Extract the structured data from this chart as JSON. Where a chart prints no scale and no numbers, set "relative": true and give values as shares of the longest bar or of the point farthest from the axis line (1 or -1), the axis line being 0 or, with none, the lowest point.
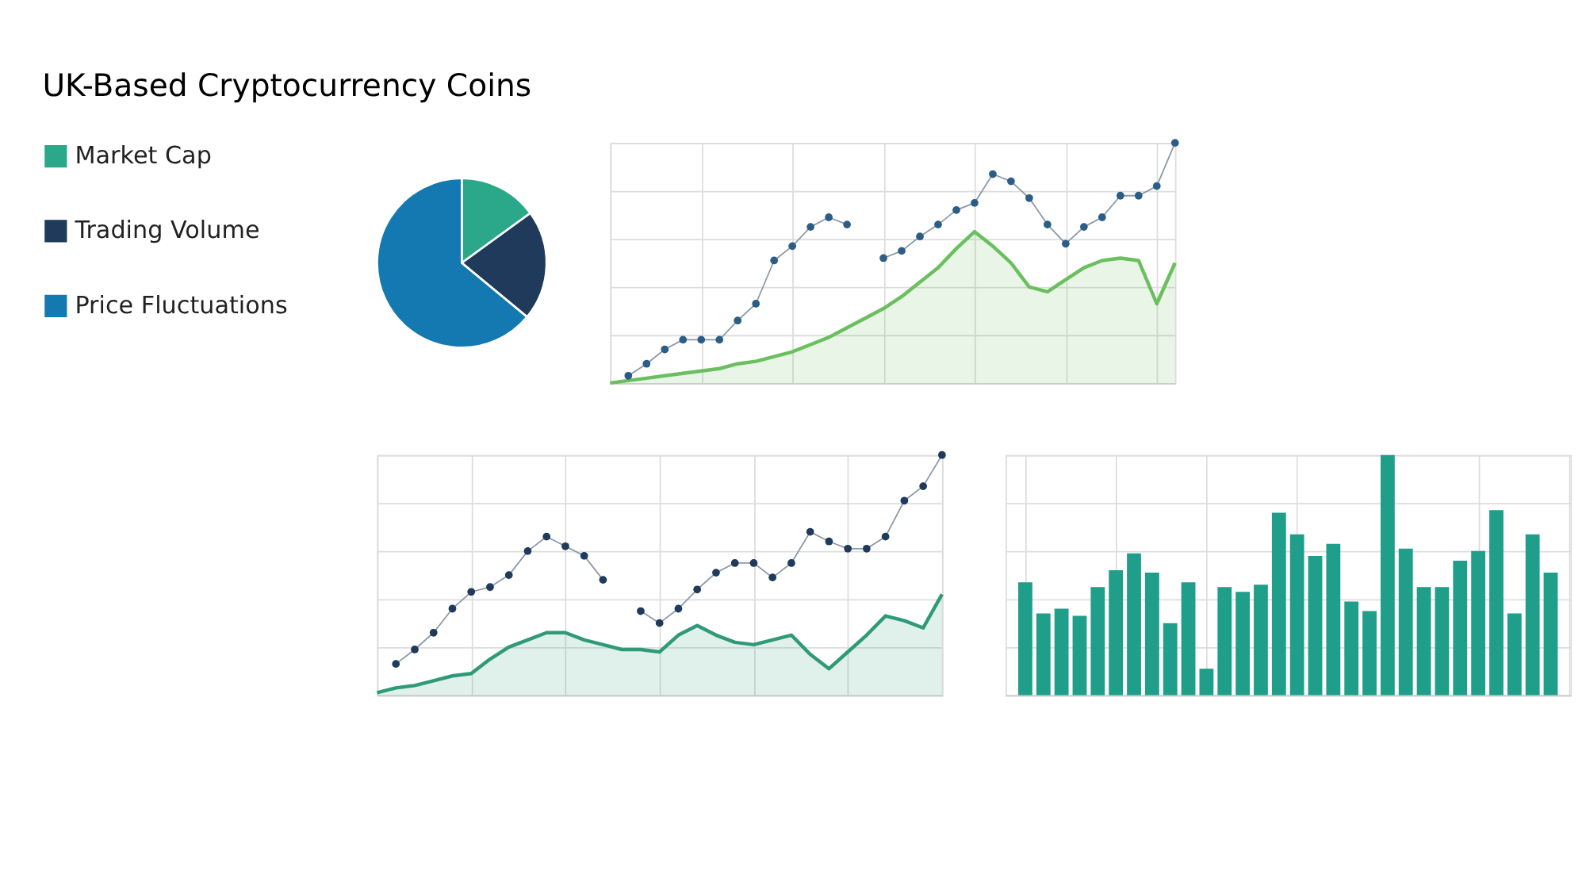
{
  "chart_data": [
    {
      "type": "pie",
      "title": "UK-Based Cryptocurrency Coins",
      "categories": [
        "Market Cap",
        "Trading Volume",
        "Price Fluctuations"
      ],
      "values": [
        15,
        21,
        64
      ],
      "colors": [
        "#2aa889",
        "#1f3a5a",
        "#1479b0"
      ],
      "legend": "left"
    },
    {
      "type": "line",
      "relative": true,
      "grid": true,
      "categories": [
        null,
        null,
        null,
        null,
        null,
        null,
        null,
        null,
        null,
        null,
        null,
        null,
        null,
        null,
        null,
        null,
        null,
        null,
        null,
        null,
        null,
        null,
        null,
        null,
        null,
        null,
        null,
        null,
        null,
        null,
        null,
        null
      ],
      "series": [
        {
          "type": "area",
          "color": "#6abf5e",
          "values": [
            0,
            0.01,
            0.02,
            0.03,
            0.04,
            0.05,
            0.06,
            0.08,
            0.09,
            0.11,
            0.13,
            0.16,
            0.19,
            0.23,
            0.27,
            0.31,
            0.36,
            0.42,
            0.48,
            0.56,
            0.63,
            0.57,
            0.5,
            0.4,
            0.38,
            0.43,
            0.48,
            0.51,
            0.52,
            0.51,
            0.33,
            0.5
          ]
        },
        {
          "type": "line",
          "color": "#2b5d86",
          "marker": "circle",
          "values": [
            null,
            0.03,
            0.08,
            0.14,
            0.18,
            0.18,
            0.18,
            0.26,
            0.33,
            0.51,
            0.57,
            0.65,
            0.69,
            0.66,
            null,
            0.52,
            0.55,
            0.61,
            0.66,
            0.72,
            0.75,
            0.87,
            0.84,
            0.77,
            0.66,
            0.58,
            0.65,
            0.69,
            0.78,
            0.78,
            0.82,
            1.0
          ]
        }
      ]
    },
    {
      "type": "line",
      "relative": true,
      "grid": true,
      "categories": [
        null,
        null,
        null,
        null,
        null,
        null,
        null,
        null,
        null,
        null,
        null,
        null,
        null,
        null,
        null,
        null,
        null,
        null,
        null,
        null,
        null,
        null,
        null,
        null,
        null,
        null,
        null,
        null,
        null,
        null,
        null
      ],
      "series": [
        {
          "type": "area",
          "color": "#2f9a78",
          "values": [
            0.01,
            0.03,
            0.04,
            0.06,
            0.08,
            0.09,
            0.15,
            0.2,
            0.23,
            0.26,
            0.26,
            0.23,
            0.21,
            0.19,
            0.19,
            0.18,
            0.25,
            0.29,
            0.25,
            0.22,
            0.21,
            0.23,
            0.25,
            0.17,
            0.11,
            0.18,
            0.25,
            0.33,
            0.31,
            0.28,
            0.42
          ]
        },
        {
          "type": "line",
          "color": "#1f3a5a",
          "marker": "circle",
          "values": [
            null,
            0.13,
            0.19,
            0.26,
            0.36,
            0.43,
            0.45,
            0.5,
            0.6,
            0.66,
            0.62,
            0.58,
            0.48,
            null,
            0.35,
            0.3,
            0.36,
            0.44,
            0.51,
            0.55,
            0.55,
            0.49,
            0.55,
            0.68,
            0.64,
            0.61,
            0.61,
            0.66,
            0.81,
            0.87,
            1.0
          ]
        }
      ]
    },
    {
      "type": "bar",
      "relative": true,
      "grid": true,
      "color": "#1f9e8a",
      "categories": [
        null,
        null,
        null,
        null,
        null,
        null,
        null,
        null,
        null,
        null,
        null,
        null,
        null,
        null,
        null,
        null,
        null,
        null,
        null,
        null,
        null,
        null,
        null,
        null,
        null,
        null,
        null,
        null,
        null,
        null
      ],
      "values": [
        0.47,
        0.34,
        0.36,
        0.33,
        0.45,
        0.52,
        0.59,
        0.51,
        0.3,
        0.47,
        0.11,
        0.45,
        0.43,
        0.46,
        0.76,
        0.67,
        0.58,
        0.63,
        0.39,
        0.35,
        1.0,
        0.61,
        0.45,
        0.45,
        0.56,
        0.6,
        0.77,
        0.34,
        0.67,
        0.51
      ]
    }
  ]
}
